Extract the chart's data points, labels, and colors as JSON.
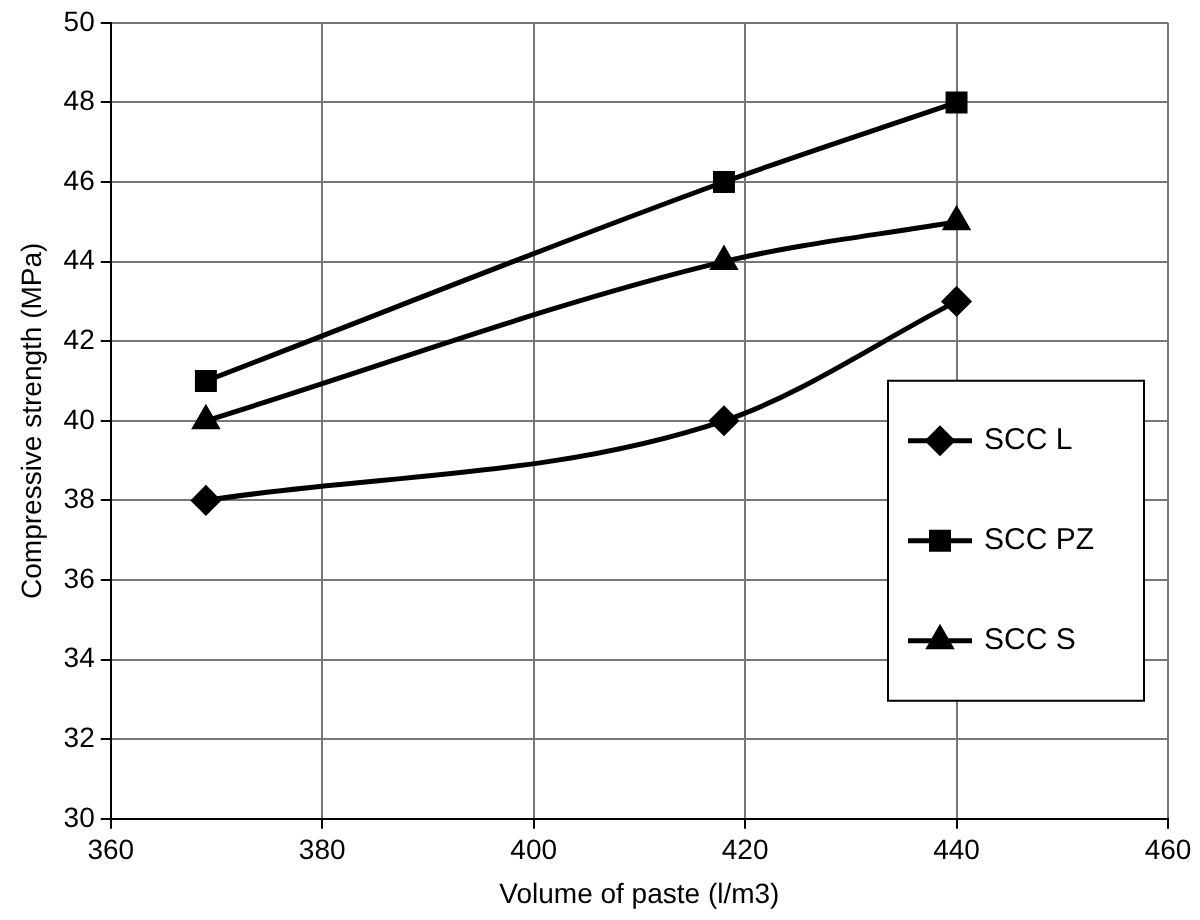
{
  "chart_data": {
    "type": "line",
    "xlabel": "Volume of paste (l/m3)",
    "ylabel": "Compressive strength (MPa)",
    "x": [
      369,
      418,
      440
    ],
    "series": [
      {
        "name": "SCC L",
        "color": "#000000",
        "values": [
          38,
          40,
          43
        ],
        "marker": "diamond"
      },
      {
        "name": "SCC PZ",
        "color": "#000000",
        "values": [
          41,
          46,
          48
        ],
        "marker": "square"
      },
      {
        "name": "SCC S",
        "color": "#000000",
        "values": [
          40,
          44,
          45
        ],
        "marker": "triangle"
      }
    ],
    "xlim": [
      360,
      460
    ],
    "xticks": [
      360,
      380,
      400,
      420,
      440,
      460
    ],
    "ylim": [
      30,
      50
    ],
    "yticks": [
      30,
      32,
      34,
      36,
      38,
      40,
      42,
      44,
      46,
      48,
      50
    ],
    "grid": true,
    "legend": "right",
    "line_style": "solid"
  }
}
